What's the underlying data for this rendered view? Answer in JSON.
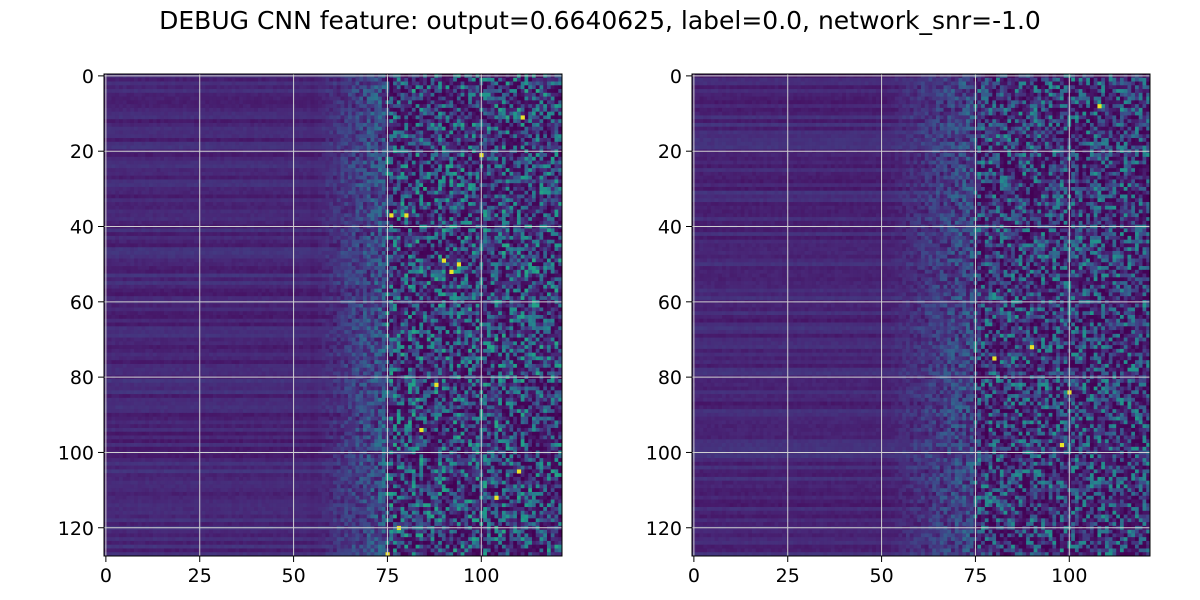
{
  "title": "DEBUG CNN feature: output=0.6640625, label=0.0, network_snr=-1.0",
  "colormap": {
    "name": "viridis",
    "stops": [
      "#440154",
      "#482878",
      "#3e4989",
      "#31688e",
      "#26828e",
      "#1f9e89",
      "#35b779",
      "#6ece58",
      "#b5de2b",
      "#fde725"
    ]
  },
  "grid_color": "#d0d0d0",
  "chart_data": [
    {
      "type": "heatmap",
      "title": "",
      "xlabel": "",
      "ylabel": "",
      "columns": 122,
      "rows": 128,
      "xlim": [
        -0.5,
        121.5
      ],
      "ylim": [
        127.5,
        -0.5
      ],
      "x_ticks": [
        0,
        25,
        50,
        75,
        100
      ],
      "y_ticks": [
        0,
        20,
        40,
        60,
        80,
        100,
        120
      ],
      "grid": true,
      "value_range": [
        0,
        1
      ],
      "description_pattern": {
        "left_region_cols": [
          0,
          55
        ],
        "left_region_level": 0.05,
        "transition_cols": [
          55,
          75
        ],
        "right_region_cols": [
          75,
          121
        ],
        "right_region_level": 0.25,
        "hotspots": [
          [
            76,
            37
          ],
          [
            80,
            37
          ],
          [
            90,
            49
          ],
          [
            92,
            52
          ],
          [
            100,
            21
          ],
          [
            104,
            112
          ],
          [
            111,
            11
          ],
          [
            88,
            82
          ],
          [
            110,
            105
          ],
          [
            84,
            94
          ],
          [
            94,
            50
          ],
          [
            78,
            120
          ],
          [
            75,
            127
          ]
        ]
      }
    },
    {
      "type": "heatmap",
      "title": "",
      "xlabel": "",
      "ylabel": "",
      "columns": 122,
      "rows": 128,
      "xlim": [
        -0.5,
        121.5
      ],
      "ylim": [
        127.5,
        -0.5
      ],
      "x_ticks": [
        0,
        25,
        50,
        75,
        100
      ],
      "y_ticks": [
        0,
        20,
        40,
        60,
        80,
        100,
        120
      ],
      "grid": true,
      "value_range": [
        0,
        1
      ],
      "description_pattern": {
        "left_region_cols": [
          0,
          50
        ],
        "left_region_level": 0.05,
        "transition_cols": [
          50,
          75
        ],
        "right_region_cols": [
          75,
          121
        ],
        "right_region_level": 0.22,
        "hotspots": [
          [
            108,
            8
          ],
          [
            98,
            98
          ],
          [
            90,
            72
          ],
          [
            100,
            84
          ],
          [
            80,
            75
          ]
        ]
      }
    }
  ]
}
